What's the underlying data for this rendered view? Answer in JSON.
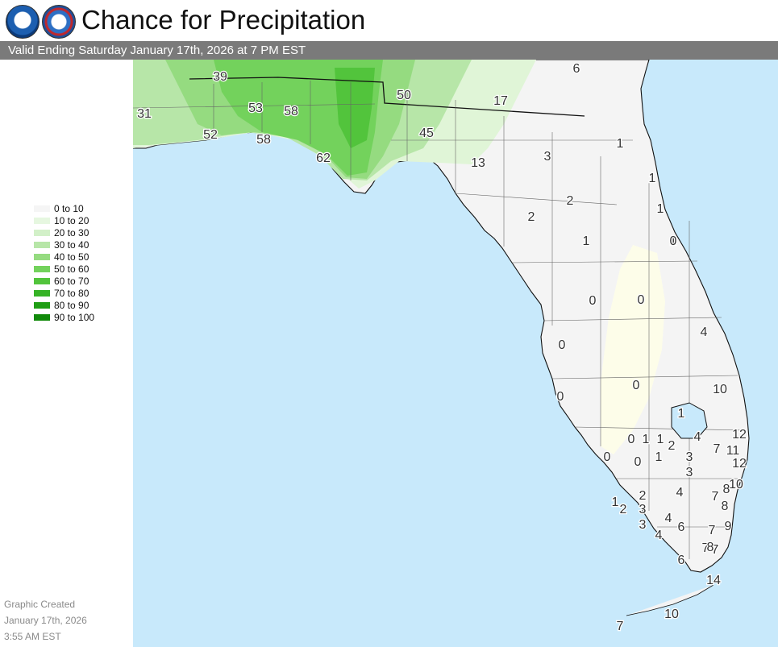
{
  "header": {
    "title": "Chance for Precipitation",
    "valid": "Valid Ending Saturday January 17th, 2026 at 7 PM EST"
  },
  "logos": [
    {
      "name": "noaa-logo",
      "text": "NOAA"
    },
    {
      "name": "nws-logo",
      "text": "NATIONAL WEATHER SERVICE"
    }
  ],
  "legend": [
    {
      "label": "0 to 10",
      "color": "#f5f5f5"
    },
    {
      "label": "10 to 20",
      "color": "#e6f7e0"
    },
    {
      "label": "20 to 30",
      "color": "#d2f0c8"
    },
    {
      "label": "30 to 40",
      "color": "#b7e6a8"
    },
    {
      "label": "40 to 50",
      "color": "#95db80"
    },
    {
      "label": "50 to 60",
      "color": "#73d25c"
    },
    {
      "label": "60 to 70",
      "color": "#52c43c"
    },
    {
      "label": "70 to 80",
      "color": "#36b326"
    },
    {
      "label": "80 to 90",
      "color": "#1f9e14"
    },
    {
      "label": "90 to 100",
      "color": "#118a0a"
    }
  ],
  "footer": {
    "line1": "Graphic Created",
    "line2": "January 17th, 2026",
    "line3": "3:55 AM EST"
  },
  "colors": {
    "water": "#c8e9fb",
    "land": "#f4f4f4",
    "dry_zone": "#fdfde9",
    "header_bar": "#7a7a7a"
  },
  "map_values": [
    "39",
    "6",
    "31",
    "53",
    "58",
    "50",
    "17",
    "52",
    "58",
    "45",
    "1",
    "62",
    "13",
    "3",
    "1",
    "2",
    "2",
    "1",
    "1",
    "0",
    "1",
    "0",
    "0",
    "4",
    "0",
    "0",
    "0",
    "10",
    "1",
    "0",
    "1",
    "1",
    "2",
    "4",
    "12",
    "7",
    "11",
    "0",
    "0",
    "1",
    "3",
    "3",
    "12",
    "10",
    "2",
    "4",
    "7",
    "8",
    "1",
    "2",
    "3",
    "8",
    "3",
    "4",
    "6",
    "7",
    "9",
    "4",
    "7",
    "7",
    "8",
    "6",
    "14",
    "10",
    "7"
  ]
}
